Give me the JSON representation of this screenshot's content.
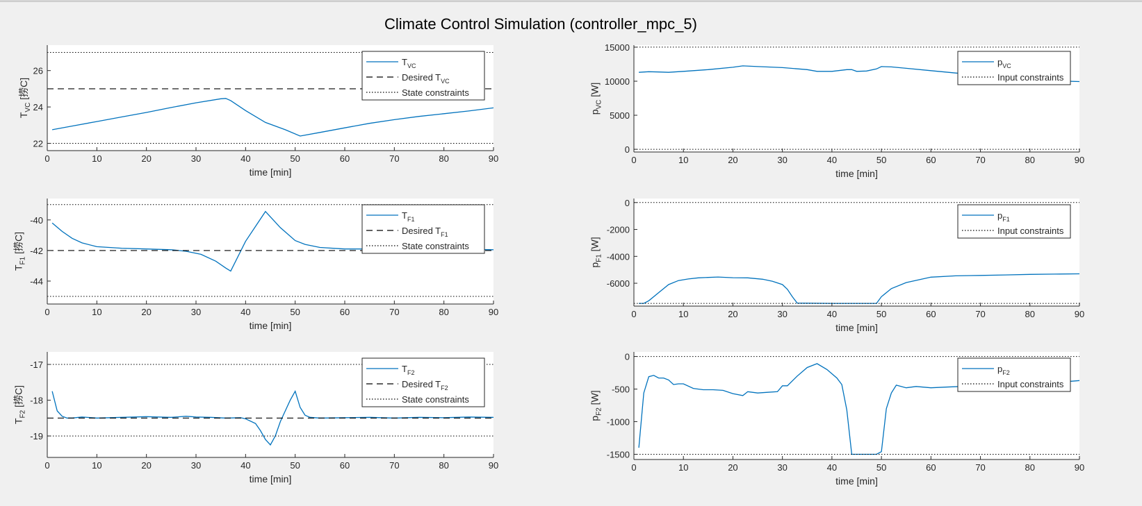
{
  "figure": {
    "title": "Climate Control Simulation (controller_mpc_5)"
  },
  "colors": {
    "series": "#0072BD",
    "desired": "#000000",
    "constraint": "#000000",
    "axes_bg": "#ffffff",
    "figure_bg": "#f0f0f0"
  },
  "chart_data": [
    {
      "type": "line",
      "xlabel": "time [min]",
      "ylabel": {
        "base": "T",
        "sub": "VC",
        "unit": " [捞C]"
      },
      "xlim": [
        0,
        90
      ],
      "ylim": [
        21.6,
        27.4
      ],
      "xticks": [
        0,
        10,
        20,
        30,
        40,
        50,
        60,
        70,
        80,
        90
      ],
      "yticks": [
        22,
        24,
        26
      ],
      "legend_position": "top-right",
      "series": [
        {
          "name": {
            "base": "T",
            "sub": "VC"
          },
          "role": "data",
          "x": [
            1,
            5,
            10,
            15,
            20,
            25,
            30,
            35,
            36,
            37,
            40,
            44,
            48,
            51,
            55,
            60,
            65,
            70,
            75,
            80,
            85,
            90
          ],
          "y": [
            22.75,
            22.95,
            23.2,
            23.45,
            23.7,
            23.97,
            24.23,
            24.45,
            24.47,
            24.35,
            23.8,
            23.15,
            22.75,
            22.4,
            22.6,
            22.85,
            23.1,
            23.3,
            23.48,
            23.63,
            23.78,
            23.95
          ]
        },
        {
          "name": {
            "base": "Desired T",
            "sub": "VC"
          },
          "role": "desired",
          "x": [
            0,
            90
          ],
          "y": [
            25,
            25
          ]
        },
        {
          "name": {
            "base": "State constraints",
            "sub": ""
          },
          "role": "constraint",
          "x": [
            0,
            90
          ],
          "y": [
            27,
            27
          ]
        },
        {
          "role": "constraint",
          "x": [
            0,
            90
          ],
          "y": [
            22,
            22
          ]
        }
      ]
    },
    {
      "type": "line",
      "xlabel": "time [min]",
      "ylabel": {
        "base": "p",
        "sub": "VC",
        "unit": " [W]"
      },
      "xlim": [
        0,
        90
      ],
      "ylim": [
        -400,
        15300
      ],
      "xticks": [
        0,
        10,
        20,
        30,
        40,
        50,
        60,
        70,
        80,
        90
      ],
      "yticks": [
        0,
        5000,
        10000,
        15000
      ],
      "legend_position": "top-right",
      "series": [
        {
          "name": {
            "base": "p",
            "sub": "VC"
          },
          "role": "data",
          "x": [
            1,
            3,
            5,
            7,
            10,
            15,
            20,
            22,
            25,
            30,
            35,
            37,
            40,
            43,
            44,
            45,
            47,
            49,
            50,
            52,
            55,
            60,
            65,
            70,
            75,
            80,
            85,
            90
          ],
          "y": [
            11300,
            11400,
            11350,
            11300,
            11450,
            11700,
            12050,
            12250,
            12150,
            12000,
            11700,
            11450,
            11450,
            11700,
            11700,
            11450,
            11500,
            11800,
            12150,
            12100,
            11900,
            11550,
            11200,
            10900,
            10600,
            10300,
            10050,
            9950
          ]
        },
        {
          "name": {
            "base": "Input constraints",
            "sub": ""
          },
          "role": "constraint",
          "x": [
            0,
            90
          ],
          "y": [
            15000,
            15000
          ]
        },
        {
          "role": "constraint",
          "x": [
            0,
            90
          ],
          "y": [
            0,
            0
          ]
        }
      ]
    },
    {
      "type": "line",
      "xlabel": "time [min]",
      "ylabel": {
        "base": "T",
        "sub": "F1",
        "unit": " [捞C]"
      },
      "xlim": [
        0,
        90
      ],
      "ylim": [
        -45.5,
        -38.6
      ],
      "xticks": [
        0,
        10,
        20,
        30,
        40,
        50,
        60,
        70,
        80,
        90
      ],
      "yticks": [
        -44,
        -42,
        -40
      ],
      "legend_position": "top-right",
      "series": [
        {
          "name": {
            "base": "T",
            "sub": "F1"
          },
          "role": "data",
          "x": [
            1,
            3,
            5,
            7,
            10,
            15,
            20,
            25,
            28,
            31,
            34,
            36,
            37,
            40,
            44,
            47,
            50,
            52,
            55,
            60,
            65,
            70,
            75,
            80,
            85,
            90
          ],
          "y": [
            -40.2,
            -40.75,
            -41.2,
            -41.5,
            -41.75,
            -41.85,
            -41.9,
            -41.95,
            -42.05,
            -42.25,
            -42.7,
            -43.15,
            -43.35,
            -41.4,
            -39.45,
            -40.5,
            -41.35,
            -41.6,
            -41.8,
            -41.9,
            -41.9,
            -41.92,
            -41.9,
            -41.9,
            -41.92,
            -41.95
          ]
        },
        {
          "name": {
            "base": "Desired T",
            "sub": "F1"
          },
          "role": "desired",
          "x": [
            0,
            90
          ],
          "y": [
            -42,
            -42
          ]
        },
        {
          "name": {
            "base": "State constraints",
            "sub": ""
          },
          "role": "constraint",
          "x": [
            0,
            90
          ],
          "y": [
            -39,
            -39
          ]
        },
        {
          "role": "constraint",
          "x": [
            0,
            90
          ],
          "y": [
            -45,
            -45
          ]
        }
      ]
    },
    {
      "type": "line",
      "xlabel": "time [min]",
      "ylabel": {
        "base": "p",
        "sub": "F1",
        "unit": " [W]"
      },
      "xlim": [
        0,
        90
      ],
      "ylim": [
        -7700,
        300
      ],
      "xticks": [
        0,
        10,
        20,
        30,
        40,
        50,
        60,
        70,
        80,
        90
      ],
      "yticks": [
        -6000,
        -4000,
        -2000,
        0
      ],
      "legend_position": "top-right",
      "series": [
        {
          "name": {
            "base": "p",
            "sub": "F1"
          },
          "role": "data",
          "x": [
            1,
            2,
            3,
            5,
            7,
            9,
            11,
            13,
            15,
            17,
            20,
            23,
            26,
            28,
            30,
            31,
            32,
            33,
            40,
            45,
            49,
            50,
            52,
            55,
            60,
            65,
            70,
            75,
            80,
            85,
            90
          ],
          "y": [
            -7500,
            -7500,
            -7300,
            -6700,
            -6100,
            -5800,
            -5680,
            -5600,
            -5570,
            -5540,
            -5590,
            -5600,
            -5700,
            -5850,
            -6100,
            -6450,
            -7000,
            -7480,
            -7500,
            -7500,
            -7500,
            -7000,
            -6400,
            -5950,
            -5550,
            -5450,
            -5420,
            -5380,
            -5340,
            -5320,
            -5300
          ]
        },
        {
          "name": {
            "base": "Input constraints",
            "sub": ""
          },
          "role": "constraint",
          "x": [
            0,
            90
          ],
          "y": [
            0,
            0
          ]
        },
        {
          "role": "constraint",
          "x": [
            0,
            90
          ],
          "y": [
            -7500,
            -7500
          ]
        }
      ]
    },
    {
      "type": "line",
      "xlabel": "time [min]",
      "ylabel": {
        "base": "T",
        "sub": "F2",
        "unit": " [捞C]"
      },
      "xlim": [
        0,
        90
      ],
      "ylim": [
        -19.6,
        -16.65
      ],
      "xticks": [
        0,
        10,
        20,
        30,
        40,
        50,
        60,
        70,
        80,
        90
      ],
      "yticks": [
        -19,
        -18,
        -17
      ],
      "legend_position": "top-right",
      "series": [
        {
          "name": {
            "base": "T",
            "sub": "F2"
          },
          "role": "data",
          "x": [
            1,
            2,
            3,
            4,
            5,
            7,
            10,
            15,
            20,
            25,
            28,
            30,
            33,
            36,
            39,
            40,
            42,
            43,
            44,
            45,
            46,
            47,
            48,
            49,
            50,
            51,
            52,
            53,
            55,
            60,
            65,
            70,
            75,
            80,
            85,
            90
          ],
          "y": [
            -17.75,
            -18.3,
            -18.45,
            -18.5,
            -18.5,
            -18.47,
            -18.5,
            -18.48,
            -18.46,
            -18.48,
            -18.45,
            -18.47,
            -18.48,
            -18.5,
            -18.49,
            -18.52,
            -18.65,
            -18.85,
            -19.1,
            -19.25,
            -19.0,
            -18.6,
            -18.3,
            -18.0,
            -17.75,
            -18.2,
            -18.42,
            -18.48,
            -18.5,
            -18.49,
            -18.48,
            -18.5,
            -18.48,
            -18.49,
            -18.47,
            -18.48
          ]
        },
        {
          "name": {
            "base": "Desired T",
            "sub": "F2"
          },
          "role": "desired",
          "x": [
            0,
            90
          ],
          "y": [
            -18.5,
            -18.5
          ]
        },
        {
          "name": {
            "base": "State constraints",
            "sub": ""
          },
          "role": "constraint",
          "x": [
            0,
            90
          ],
          "y": [
            -17,
            -17
          ]
        },
        {
          "role": "constraint",
          "x": [
            0,
            90
          ],
          "y": [
            -19,
            -19
          ]
        }
      ]
    },
    {
      "type": "line",
      "xlabel": "time [min]",
      "ylabel": {
        "base": "p",
        "sub": "F2",
        "unit": " [W]"
      },
      "xlim": [
        0,
        90
      ],
      "ylim": [
        -1580,
        70
      ],
      "xticks": [
        0,
        10,
        20,
        30,
        40,
        50,
        60,
        70,
        80,
        90
      ],
      "yticks": [
        -1500,
        -1000,
        -500,
        0
      ],
      "legend_position": "top-right",
      "series": [
        {
          "name": {
            "base": "p",
            "sub": "F2"
          },
          "role": "data",
          "x": [
            1,
            2,
            3,
            4,
            5,
            6,
            7,
            8,
            9,
            10,
            12,
            14,
            16,
            18,
            20,
            22,
            23,
            25,
            27,
            29,
            30,
            31,
            33,
            35,
            37,
            39,
            41,
            42,
            43,
            44,
            46,
            48,
            49,
            50,
            51,
            52,
            53,
            55,
            57,
            60,
            63,
            66,
            70,
            75,
            80,
            85,
            90
          ],
          "y": [
            -1400,
            -560,
            -310,
            -290,
            -330,
            -330,
            -360,
            -430,
            -420,
            -420,
            -490,
            -510,
            -510,
            -520,
            -570,
            -600,
            -540,
            -560,
            -550,
            -540,
            -450,
            -450,
            -300,
            -170,
            -110,
            -200,
            -330,
            -430,
            -820,
            -1500,
            -1500,
            -1500,
            -1500,
            -1460,
            -800,
            -560,
            -440,
            -480,
            -460,
            -480,
            -470,
            -460,
            -470,
            -450,
            -450,
            -400,
            -370
          ]
        },
        {
          "name": {
            "base": "Input constraints",
            "sub": ""
          },
          "role": "constraint",
          "x": [
            0,
            90
          ],
          "y": [
            0,
            0
          ]
        },
        {
          "role": "constraint",
          "x": [
            0,
            90
          ],
          "y": [
            -1500,
            -1500
          ]
        }
      ]
    }
  ]
}
